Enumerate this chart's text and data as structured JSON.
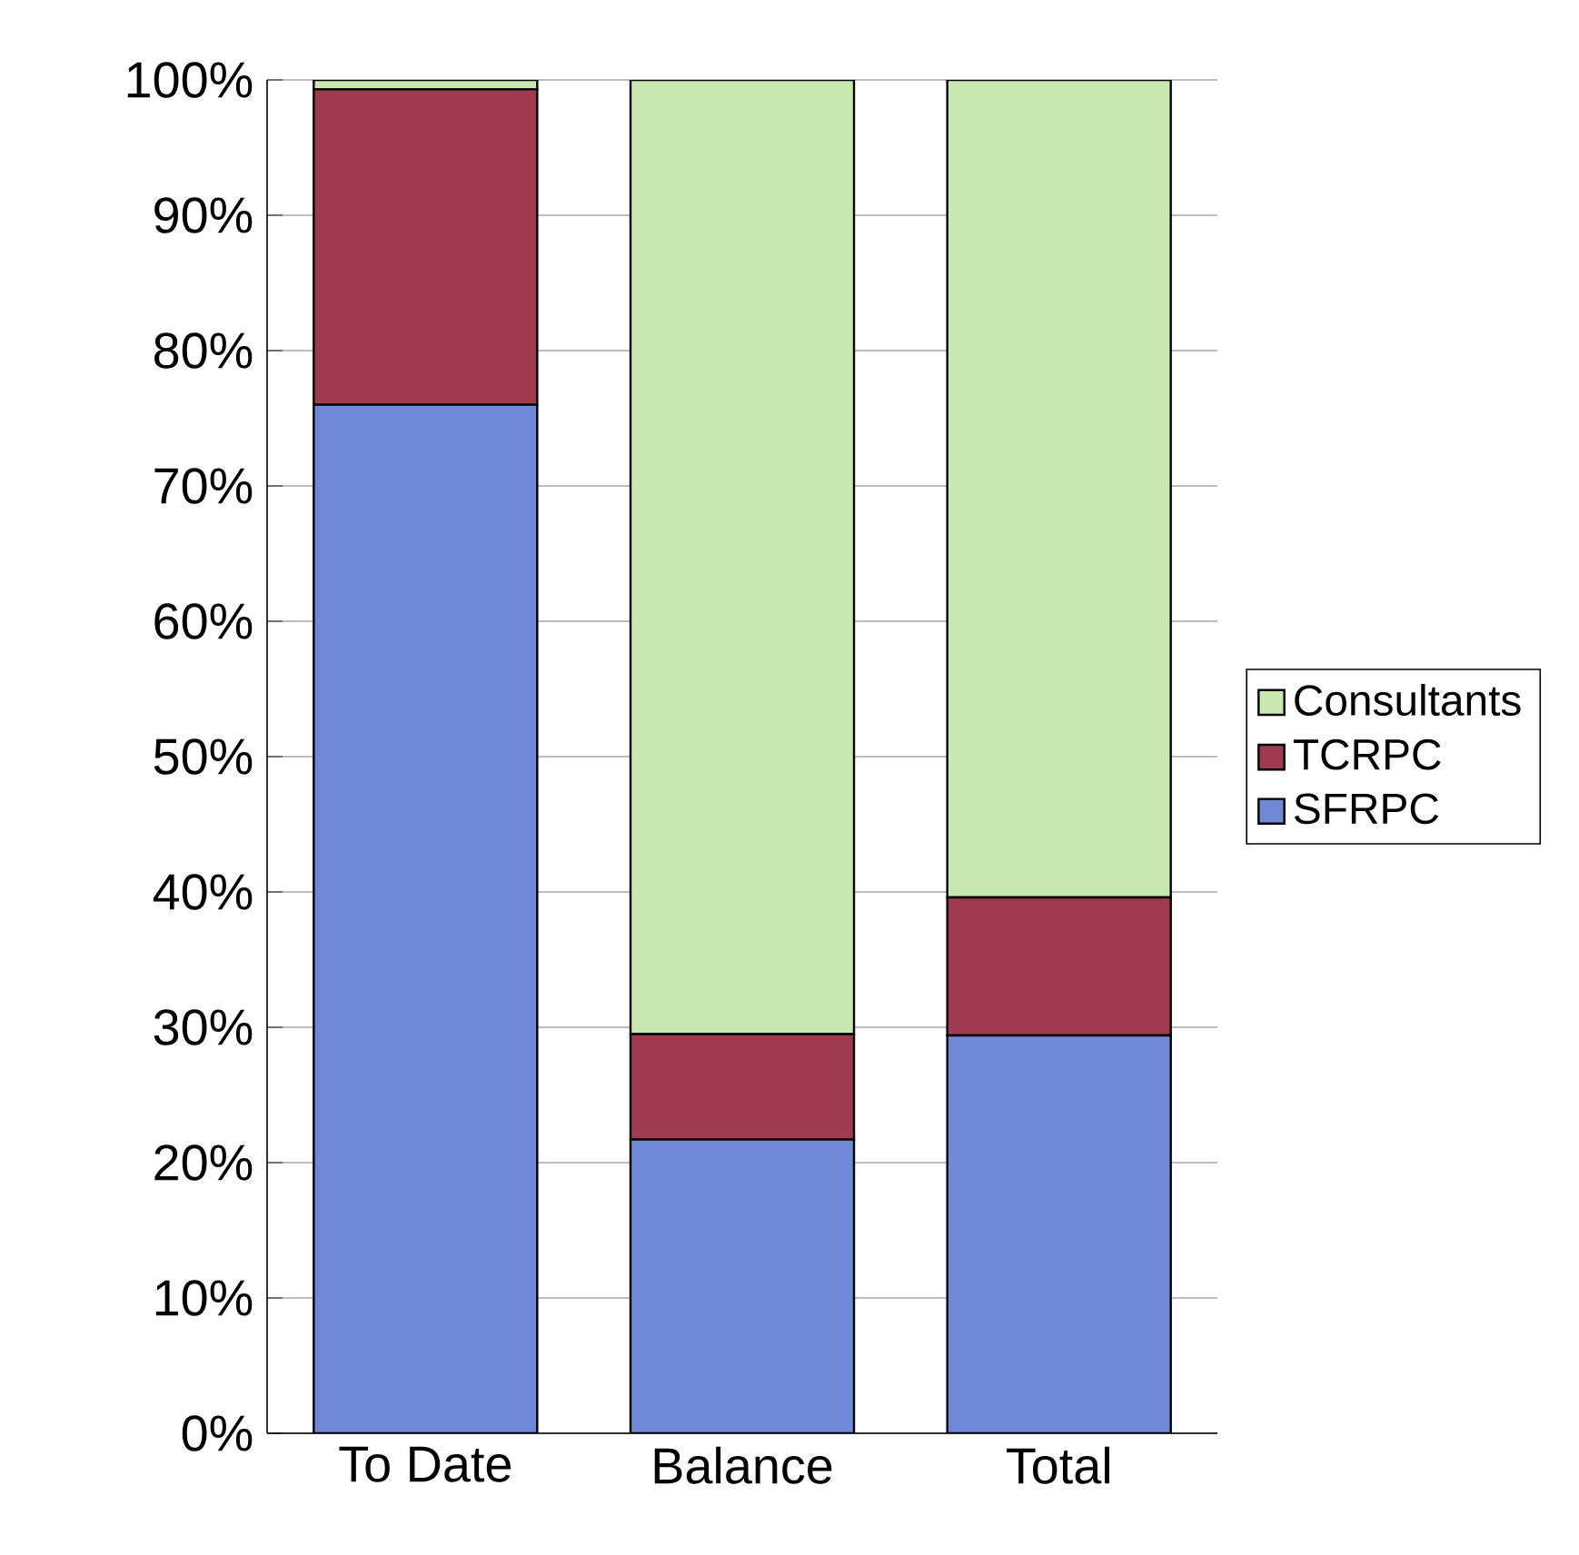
{
  "chart_data": {
    "type": "bar",
    "stacked": true,
    "categories": [
      "To Date",
      "Balance",
      "Total"
    ],
    "series": [
      {
        "name": "SFRPC",
        "color": "#7088d8",
        "values": [
          76.0,
          21.7,
          29.4
        ]
      },
      {
        "name": "TCRPC",
        "color": "#a03a50",
        "values": [
          23.3,
          7.8,
          10.2
        ]
      },
      {
        "name": "Consultants",
        "color": "#c8e8b0",
        "values": [
          0.7,
          70.5,
          60.4
        ]
      }
    ],
    "ylim": [
      0,
      100
    ],
    "yticks": [
      {
        "value": 0,
        "label": "0%"
      },
      {
        "value": 10,
        "label": "10%"
      },
      {
        "value": 20,
        "label": "20%"
      },
      {
        "value": 30,
        "label": "30%"
      },
      {
        "value": 40,
        "label": "40%"
      },
      {
        "value": 50,
        "label": "50%"
      },
      {
        "value": 60,
        "label": "60%"
      },
      {
        "value": 70,
        "label": "70%"
      },
      {
        "value": 80,
        "label": "80%"
      },
      {
        "value": 90,
        "label": "90%"
      },
      {
        "value": 100,
        "label": "100%"
      }
    ],
    "grid": "y",
    "legend": "right"
  }
}
